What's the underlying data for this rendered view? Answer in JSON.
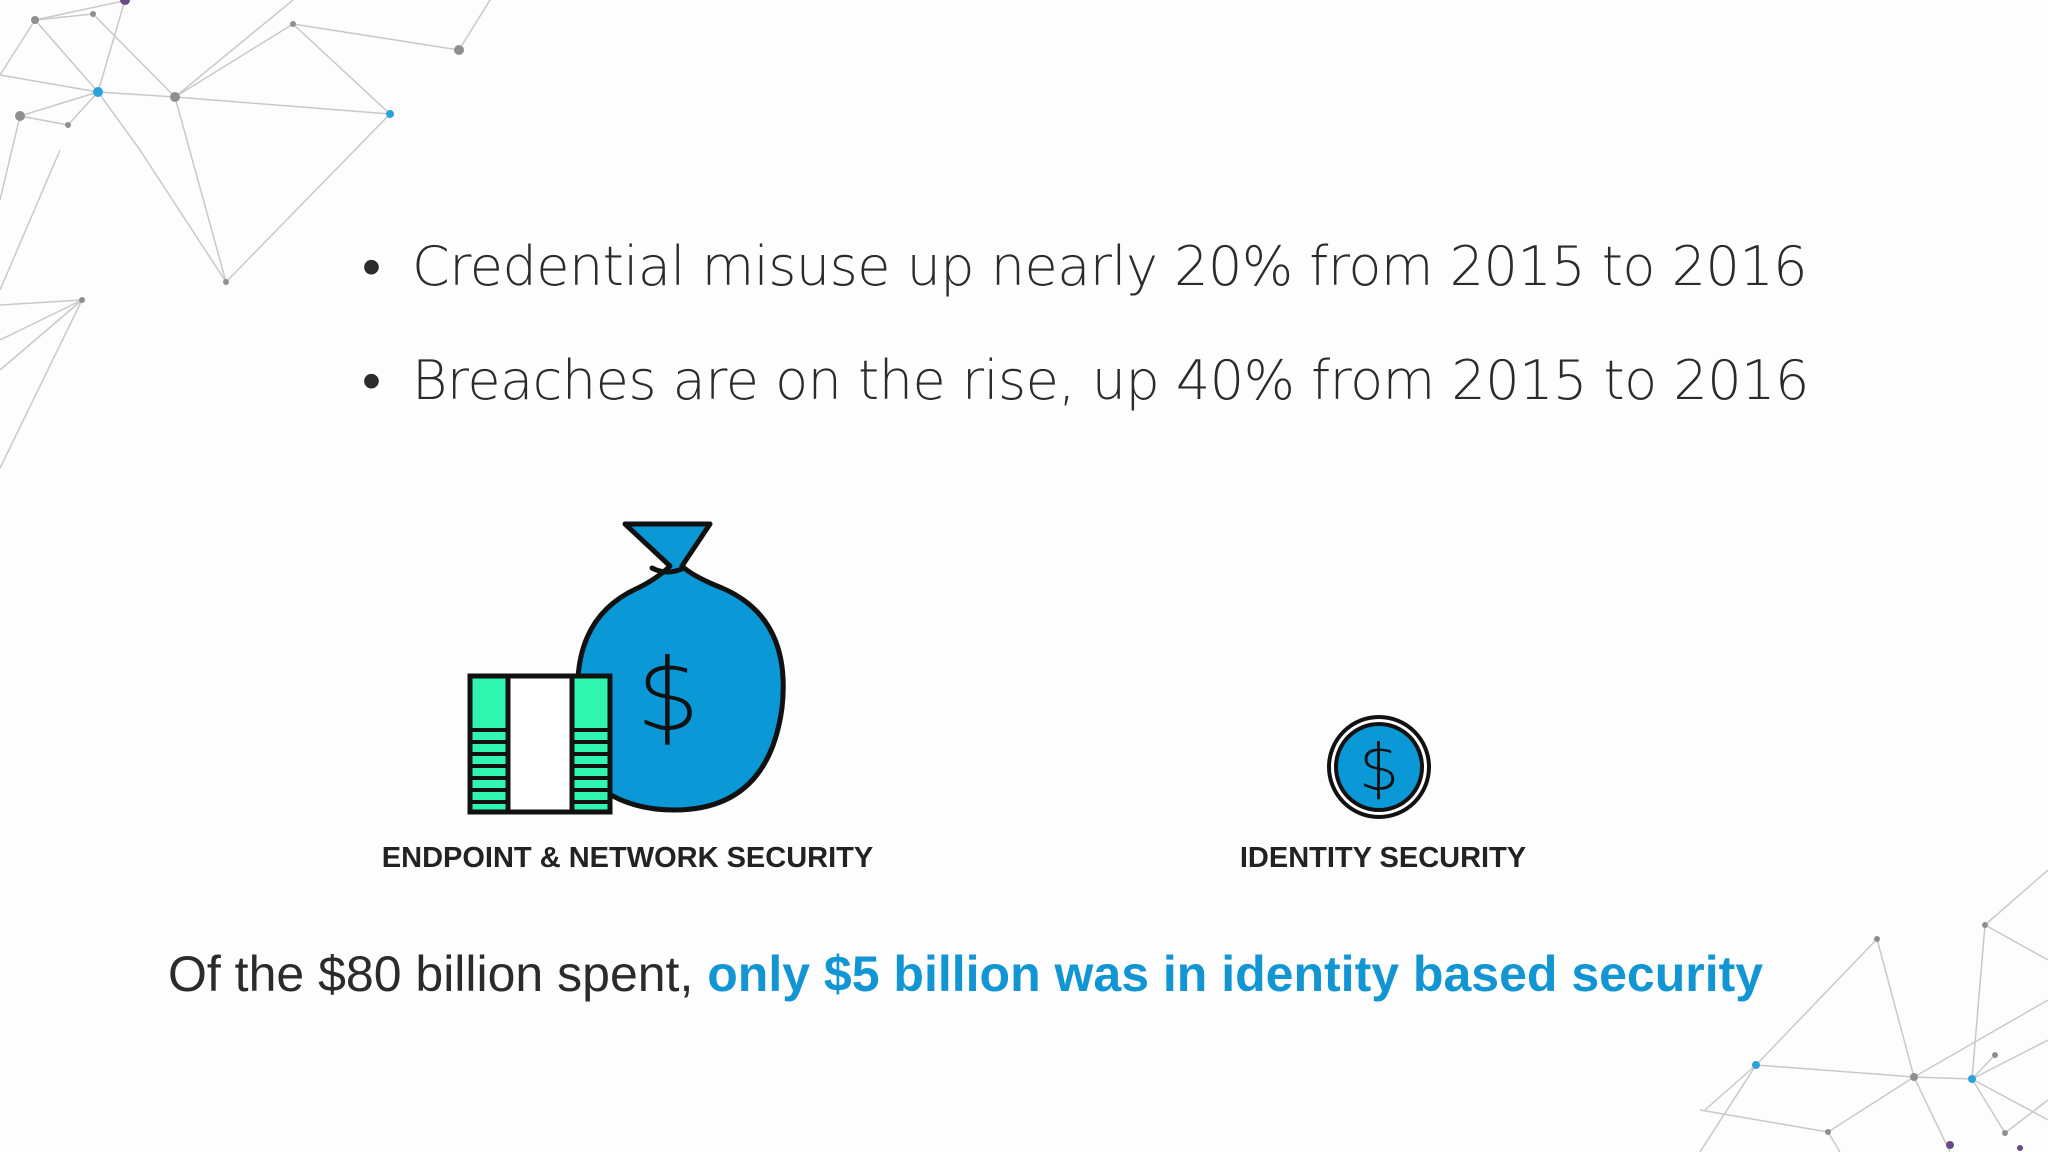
{
  "bullets": [
    {
      "text": "Credential misuse up nearly 20% from 2015 to 2016"
    },
    {
      "text": "Breaches are on the rise, up 40% from 2015 to 2016"
    }
  ],
  "icons": {
    "money_bag": {
      "icon": "money-bag-icon",
      "symbol": "$"
    },
    "coin": {
      "icon": "dollar-coin-icon",
      "symbol": "$"
    }
  },
  "captions": {
    "endpoint": "ENDPOINT & NETWORK SECURITY",
    "identity": "IDENTITY SECURITY"
  },
  "summary": {
    "plain": "Of the $80 billion spent,",
    "highlight": "only $5 billion was in identity based security"
  },
  "colors": {
    "accent_blue": "#0a98d6",
    "bills_green": "#2ff5b0",
    "highlight_text": "#1296d3",
    "text_dark": "#2b2b2b"
  }
}
